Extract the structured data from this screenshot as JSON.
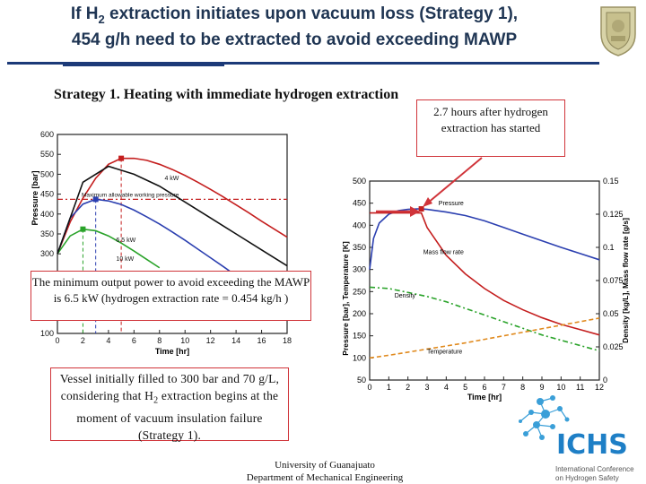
{
  "slide": {
    "title_part1": "If H",
    "title_sub": "2",
    "title_part2": " extraction initiates upon vacuum loss (Strategy 1),",
    "title_line2": "454 g/h need to be extracted to avoid exceeding MAWP",
    "heading": "Strategy 1. Heating with immediate hydrogen extraction",
    "callout_top": "2.7 hours after hydrogen extraction has started",
    "callout_min_power": "The minimum output power to avoid exceeding the MAWP is 6.5 kW (hydrogen extraction rate = 0.454 kg/h )",
    "callout_vessel_part1": "Vessel initially filled to 300 bar and 70 g/L, considering that H",
    "callout_vessel_sub": "2",
    "callout_vessel_part2": " extraction begins at the moment of vacuum insulation failure (Strategy 1).",
    "footer_line1": "University of Guanajuato",
    "footer_line2": "Department of Mechanical Engineering",
    "ichs_logo_text": "ICHS",
    "ichs_logo_subtitle1": "International Conference",
    "ichs_logo_subtitle2": "on Hydrogen Safety",
    "accent_color": "#d0343a",
    "title_color": "#1f3553"
  },
  "chart_data": [
    {
      "type": "line",
      "title": "",
      "xlabel": "Time [hr]",
      "ylabel": "Pressure [bar]",
      "xlim": [
        0,
        18
      ],
      "ylim": [
        100,
        600
      ],
      "x_ticks": [
        0,
        2,
        4,
        6,
        8,
        10,
        12,
        14,
        16,
        18
      ],
      "y_ticks": [
        100,
        150,
        200,
        250,
        300,
        350,
        400,
        450,
        500,
        550,
        600
      ],
      "annotations": [
        "4 kW",
        "6.5 kW",
        "10 kW",
        "Maximum allowable working pressure"
      ],
      "mawp": 437,
      "series": [
        {
          "name": "4 kW",
          "color": "#c41e1e",
          "x": [
            0,
            1,
            2,
            3,
            4,
            5,
            6,
            7,
            8,
            9,
            10,
            11,
            12,
            13,
            14,
            15,
            16,
            17,
            18
          ],
          "values": [
            300,
            380,
            440,
            490,
            525,
            540,
            540,
            535,
            525,
            512,
            497,
            480,
            462,
            443,
            423,
            403,
            382,
            362,
            342
          ]
        },
        {
          "name": "6.5 kW",
          "color": "#2b3fb0",
          "x": [
            0,
            1,
            2,
            3,
            4,
            5,
            6,
            7,
            8,
            9,
            10,
            11,
            12,
            13,
            14,
            15,
            16,
            17,
            18
          ],
          "values": [
            300,
            390,
            425,
            437,
            433,
            424,
            410,
            393,
            375,
            355,
            334,
            312,
            290,
            268,
            245,
            222,
            200,
            178,
            157
          ]
        },
        {
          "name": "10 kW",
          "color": "#2aa32a",
          "x": [
            0,
            1,
            2,
            3,
            4,
            5,
            6,
            7,
            8
          ],
          "values": [
            300,
            345,
            362,
            358,
            345,
            327,
            307,
            286,
            265
          ]
        },
        {
          "name": "",
          "color": "#111111",
          "x": [
            0,
            2,
            4,
            6,
            8,
            10,
            12,
            14,
            16,
            18
          ],
          "values": [
            300,
            480,
            520,
            500,
            470,
            430,
            390,
            350,
            310,
            270
          ]
        }
      ]
    },
    {
      "type": "line",
      "title": "",
      "xlabel": "Time [hr]",
      "ylabel_left": "Pressure [bar], Temperature [K]",
      "ylabel_right": "Density [kg/L], Mass flow rate [g/s]",
      "xlim": [
        0,
        12
      ],
      "ylim_left": [
        50,
        500
      ],
      "ylim_right": [
        0,
        0.15
      ],
      "x_ticks": [
        0,
        1,
        2,
        3,
        4,
        5,
        6,
        7,
        8,
        9,
        10,
        11,
        12
      ],
      "y_ticks_left": [
        50,
        100,
        150,
        200,
        250,
        300,
        350,
        400,
        450,
        500
      ],
      "y_ticks_right": [
        0,
        0.025,
        0.05,
        0.075,
        0.1,
        0.125,
        0.15
      ],
      "annotations": [
        "Pressure",
        "Mass flow rate",
        "Density",
        "Temperature"
      ],
      "series": [
        {
          "name": "Pressure",
          "color": "#2b3fb0",
          "x": [
            0,
            0.2,
            0.5,
            1,
            1.5,
            2,
            2.5,
            2.7,
            3,
            4,
            5,
            6,
            7,
            8,
            9,
            10,
            11,
            12
          ],
          "values": [
            300,
            370,
            405,
            425,
            433,
            436,
            437,
            437,
            436,
            430,
            422,
            410,
            395,
            380,
            365,
            350,
            336,
            322
          ]
        },
        {
          "name": "Mass flow rate",
          "color": "#c41e1e",
          "x": [
            0,
            1,
            2,
            2.7,
            3,
            4,
            5,
            6,
            7,
            8,
            9,
            10,
            11,
            12
          ],
          "values": [
            0.126,
            0.126,
            0.126,
            0.126,
            0.115,
            0.094,
            0.08,
            0.069,
            0.06,
            0.053,
            0.047,
            0.042,
            0.038,
            0.034
          ]
        },
        {
          "name": "Density",
          "color": "#2aa32a",
          "x": [
            0,
            1,
            2,
            3,
            4,
            5,
            6,
            7,
            8,
            9,
            10,
            11,
            12
          ],
          "values": [
            0.07,
            0.069,
            0.066,
            0.063,
            0.059,
            0.054,
            0.049,
            0.044,
            0.039,
            0.034,
            0.03,
            0.026,
            0.022
          ]
        },
        {
          "name": "Temperature",
          "color": "#e08a1e",
          "x": [
            0,
            1,
            2,
            3,
            4,
            5,
            6,
            7,
            8,
            9,
            10,
            11,
            12
          ],
          "values": [
            100,
            106,
            113,
            120,
            127,
            134,
            142,
            150,
            158,
            166,
            174,
            182,
            190
          ]
        }
      ]
    }
  ]
}
